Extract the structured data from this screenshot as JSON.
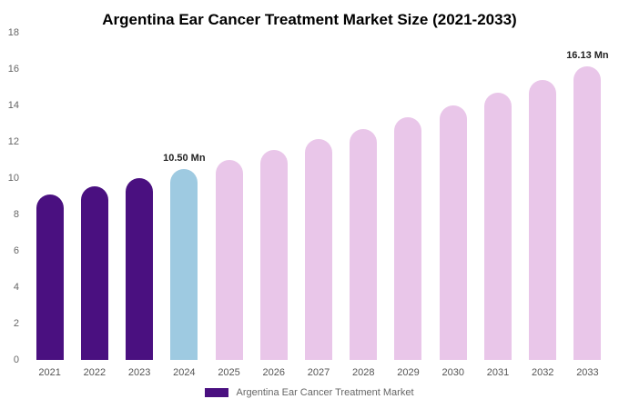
{
  "chart_data": {
    "type": "bar",
    "title": "Argentina Ear Cancer Treatment Market Size (2021-2033)",
    "categories": [
      "2021",
      "2022",
      "2023",
      "2024",
      "2025",
      "2026",
      "2027",
      "2028",
      "2029",
      "2030",
      "2031",
      "2032",
      "2033"
    ],
    "values": [
      9.1,
      9.55,
      10.02,
      10.5,
      11.02,
      11.56,
      12.13,
      12.72,
      13.35,
      14.0,
      14.69,
      15.41,
      16.13
    ],
    "unit": "Mn",
    "xlabel": "",
    "ylabel": "",
    "ylim": [
      0,
      18
    ],
    "yticks": [
      0,
      2,
      4,
      6,
      8,
      10,
      12,
      14,
      16,
      18
    ],
    "grid": false,
    "colors": [
      "#4a1080",
      "#4a1080",
      "#4a1080",
      "#9ecae1",
      "#e9c6e9",
      "#e9c6e9",
      "#e9c6e9",
      "#e9c6e9",
      "#e9c6e9",
      "#e9c6e9",
      "#e9c6e9",
      "#e9c6e9",
      "#e9c6e9"
    ],
    "annotations": [
      {
        "category": "2024",
        "text": "10.50 Mn"
      },
      {
        "category": "2033",
        "text": "16.13 Mn"
      }
    ],
    "legend": {
      "label": "Argentina Ear Cancer Treatment Market",
      "color": "#4a1080",
      "position": "bottom"
    }
  }
}
